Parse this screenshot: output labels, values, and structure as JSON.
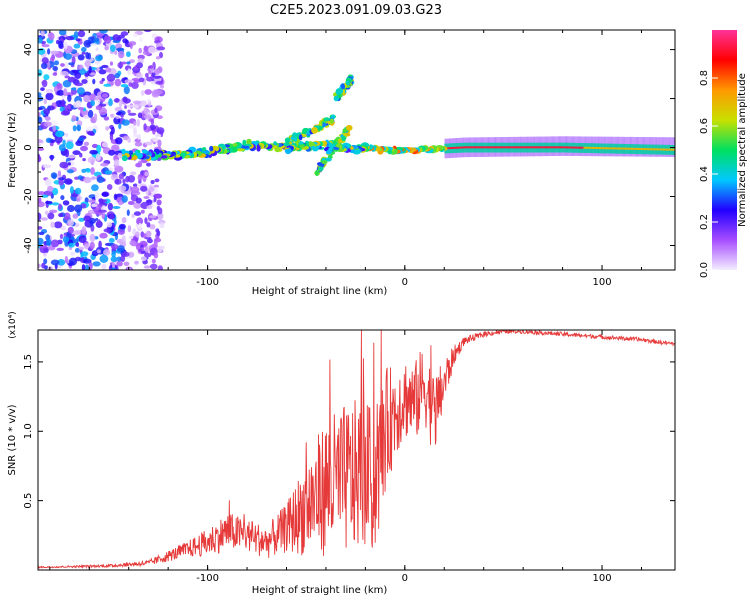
{
  "title": "C2E5.2023.091.09.03.G23",
  "colors": {
    "line": "#e63a3a",
    "frame": "#000000",
    "background": "#ffffff"
  },
  "chart_data": [
    {
      "type": "heatmap",
      "title": "C2E5.2023.091.09.03.G23",
      "xlabel": "Height of straight line (km)",
      "ylabel": "Frequency (Hz)",
      "xlim": [
        -186,
        137
      ],
      "ylim": [
        -50,
        48
      ],
      "xticks": [
        "-100",
        "0",
        "100"
      ],
      "xtick_values": [
        -100,
        0,
        100
      ],
      "yticks": [
        "40",
        "20",
        "0",
        "-20",
        "-40"
      ],
      "ytick_values": [
        40,
        20,
        0,
        -20,
        -40
      ],
      "noise_region": {
        "x_from": -186,
        "x_to": -123,
        "y_from": -50,
        "y_to": 48
      },
      "signal_ridge": [
        {
          "x": -143,
          "y": -3
        },
        {
          "x": -120,
          "y": -3
        },
        {
          "x": -100,
          "y": -2
        },
        {
          "x": -80,
          "y": 1
        },
        {
          "x": -60,
          "y": 0
        },
        {
          "x": -45,
          "y": 1
        },
        {
          "x": -25,
          "y": 0
        },
        {
          "x": -10,
          "y": -1
        },
        {
          "x": 5,
          "y": -1
        },
        {
          "x": 30,
          "y": 0
        },
        {
          "x": 80,
          "y": 0
        },
        {
          "x": 137,
          "y": -1
        }
      ],
      "branches": [
        {
          "from": [
            -60,
            2
          ],
          "to": [
            -35,
            12
          ]
        },
        {
          "from": [
            -45,
            -10
          ],
          "to": [
            -28,
            8
          ]
        },
        {
          "from": [
            -35,
            20
          ],
          "to": [
            -27,
            28
          ]
        }
      ],
      "colorbar": {
        "label": "Normalized spectral amplitude",
        "range": [
          0,
          1
        ],
        "ticks": [
          "0.0",
          "0.2",
          "0.4",
          "0.6",
          "0.8"
        ],
        "tick_values": [
          0.0,
          0.2,
          0.4,
          0.6,
          0.8
        ],
        "gradient": [
          "#f4eeff",
          "#a64dff",
          "#2200ff",
          "#00c8ff",
          "#00e060",
          "#c8e000",
          "#ff9900",
          "#ff0000",
          "#ff3399"
        ]
      }
    },
    {
      "type": "line",
      "xlabel": "Height of straight line (km)",
      "ylabel": "SNR (10 * v/v)",
      "y_multiplier": "(x10⁴)",
      "xlim": [
        -186,
        137
      ],
      "ylim": [
        0,
        1.73
      ],
      "xticks": [
        "-100",
        "0",
        "100"
      ],
      "xtick_values": [
        -100,
        0,
        100
      ],
      "yticks": [
        "0.5",
        "1.0",
        "1.5"
      ],
      "ytick_values": [
        0.5,
        1.0,
        1.5
      ],
      "series": [
        {
          "name": "SNR",
          "x": [
            -186,
            -150,
            -130,
            -120,
            -110,
            -100,
            -90,
            -80,
            -70,
            -60,
            -50,
            -40,
            -30,
            -20,
            -15,
            -10,
            -5,
            0,
            5,
            10,
            15,
            20,
            25,
            30,
            40,
            50,
            60,
            70,
            80,
            90,
            100,
            110,
            120,
            130,
            137
          ],
          "y": [
            0.02,
            0.03,
            0.05,
            0.1,
            0.15,
            0.2,
            0.28,
            0.25,
            0.2,
            0.3,
            0.45,
            0.6,
            0.65,
            0.7,
            0.6,
            1.0,
            1.15,
            1.25,
            1.2,
            1.35,
            1.1,
            1.35,
            1.55,
            1.65,
            1.7,
            1.72,
            1.72,
            1.71,
            1.7,
            1.69,
            1.68,
            1.67,
            1.66,
            1.64,
            1.63
          ],
          "noise_amplitude": [
            0.005,
            0.01,
            0.02,
            0.04,
            0.06,
            0.1,
            0.14,
            0.12,
            0.12,
            0.18,
            0.35,
            0.5,
            0.55,
            0.55,
            0.5,
            0.45,
            0.35,
            0.3,
            0.3,
            0.3,
            0.3,
            0.18,
            0.07,
            0.03,
            0.02,
            0.015,
            0.015,
            0.015,
            0.015,
            0.015,
            0.015,
            0.015,
            0.015,
            0.015,
            0.015
          ]
        }
      ]
    }
  ]
}
